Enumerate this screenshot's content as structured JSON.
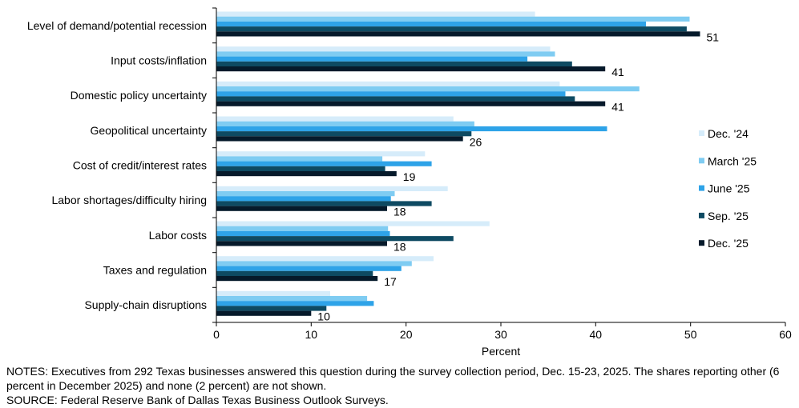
{
  "chart_data": {
    "type": "bar",
    "orientation": "horizontal",
    "xlabel": "Percent",
    "xlim": [
      0,
      60
    ],
    "xticks": [
      "0",
      "10",
      "20",
      "30",
      "40",
      "50",
      "60"
    ],
    "categories": [
      "Level of demand/potential recession",
      "Input costs/inflation",
      "Domestic policy uncertainty",
      "Geopolitical uncertainty",
      "Cost of credit/interest rates",
      "Labor shortages/difficulty hiring",
      "Labor costs",
      "Taxes and regulation",
      "Supply-chain disruptions"
    ],
    "series": [
      {
        "name": "Dec. '24",
        "color": "#d6ecfa",
        "values": [
          33.6,
          35.2,
          36.2,
          25.0,
          22.0,
          24.4,
          28.8,
          22.9,
          12.0
        ]
      },
      {
        "name": "March '25",
        "color": "#7fccf2",
        "values": [
          49.9,
          35.7,
          44.6,
          27.2,
          17.5,
          18.8,
          18.1,
          20.6,
          15.9
        ]
      },
      {
        "name": "June '25",
        "color": "#2ea3e8",
        "values": [
          45.3,
          32.8,
          36.8,
          41.2,
          22.7,
          18.4,
          18.3,
          19.5,
          16.6
        ]
      },
      {
        "name": "Sep. '25",
        "color": "#0e4a62",
        "values": [
          49.6,
          37.5,
          37.8,
          26.9,
          17.8,
          22.7,
          25.0,
          16.5,
          11.6
        ]
      },
      {
        "name": "Dec. '25",
        "color": "#061a2b",
        "values": [
          51,
          41,
          41,
          26,
          19,
          18,
          18,
          17,
          10
        ]
      }
    ],
    "data_labels": [
      "51",
      "41",
      "41",
      "26",
      "19",
      "18",
      "18",
      "17",
      "10"
    ],
    "legend_position": "right"
  },
  "notes": {
    "notes_text": "NOTES: Executives from 292 Texas businesses answered this question during the survey collection period, Dec. 15-23, 2025. The shares reporting other (6 percent in December 2025) and none (2 percent) are not shown.",
    "source_text": "SOURCE: Federal Reserve Bank of Dallas Texas Business Outlook Surveys."
  }
}
